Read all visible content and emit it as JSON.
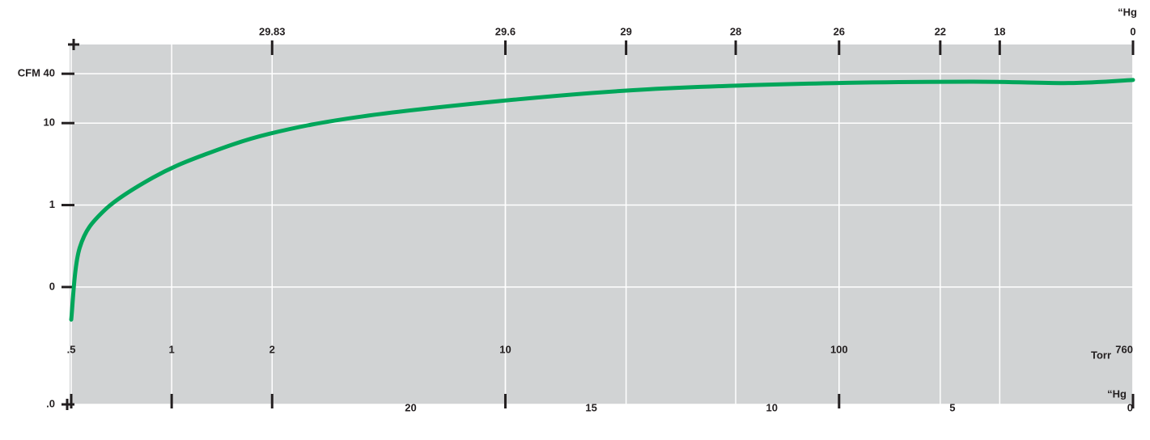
{
  "chart_data": {
    "type": "line",
    "x_label": "Torr",
    "x2_label": "“Hg",
    "x3_label": "“Hg",
    "xscale": "log",
    "yscale": "log",
    "xlim": [
      0.5,
      760
    ],
    "ylim": [
      0.0037,
      91
    ],
    "xticks": [
      {
        "value": 0.5,
        "label": ".5"
      },
      1,
      2,
      10,
      100,
      760
    ],
    "x2ticks": [
      {
        "value": 2,
        "label": "29.83"
      },
      {
        "value": 10,
        "label": "29.6"
      },
      {
        "value": 23,
        "label": "29"
      },
      {
        "value": 49,
        "label": "28"
      },
      {
        "value": 100,
        "label": "26"
      },
      {
        "value": 201,
        "label": "22"
      },
      {
        "value": 303,
        "label": "18"
      },
      {
        "value": 760,
        "label": "0"
      }
    ],
    "x3lim": [
      29.4,
      0
    ],
    "x3ticks": [
      20,
      15,
      10,
      5,
      0
    ],
    "yticks": [
      {
        "value": 40,
        "label": "CFM 40"
      },
      10,
      1,
      {
        "value": 0.1,
        "label": "0"
      },
      {
        "value": 0.0037,
        "label": ".0"
      }
    ],
    "grid": true,
    "x": [
      0.5,
      0.53,
      0.63,
      0.88,
      1.23,
      1.96,
      3.75,
      10.9,
      26.6,
      81,
      248,
      487,
      760
    ],
    "series": [
      {
        "color": "#00a65a",
        "values": [
          0.04,
          0.3,
          0.87,
          2.17,
          4.0,
          7.4,
          12.1,
          19.5,
          25.8,
          30.3,
          32.0,
          30.8,
          33.6
        ]
      }
    ]
  }
}
